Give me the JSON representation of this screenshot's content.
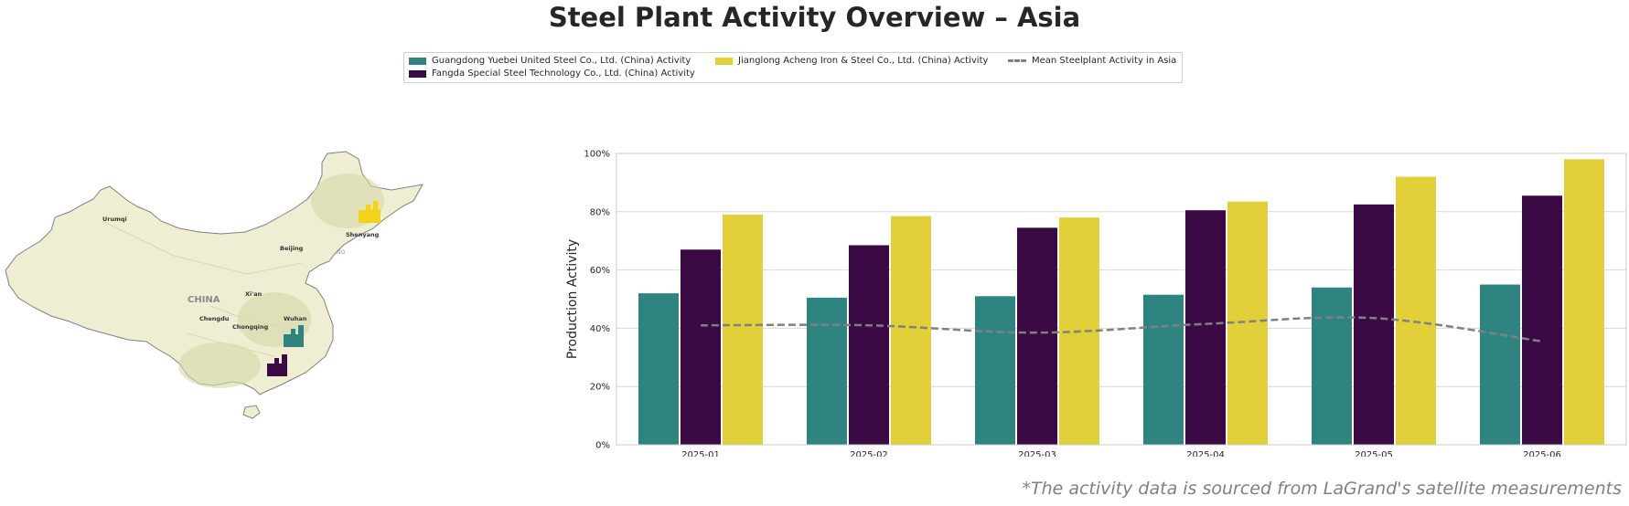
{
  "title": "Steel Plant Activity Overview – Asia",
  "footnote": "*The activity data is sourced from LaGrand's satellite measurements",
  "legend": {
    "items": [
      {
        "label": "Guangdong Yuebei United Steel Co., Ltd. (China) Activity",
        "color": "#2e8580",
        "kind": "bar"
      },
      {
        "label": "Fangda Special Steel Technology Co., Ltd. (China) Activity",
        "color": "#3b0a45",
        "kind": "bar"
      },
      {
        "label": "Jianglong Acheng Iron & Steel Co., Ltd. (China) Activity",
        "color": "#e1d03a",
        "kind": "bar"
      },
      {
        "label": "Mean Steelplant Activity in Asia",
        "color": "#808080",
        "kind": "dashed-line"
      }
    ]
  },
  "map": {
    "labels": {
      "country": "CHINA",
      "cities": [
        "Urumqi",
        "Beijing",
        "Shenyang",
        "Xi'an",
        "Wuhan",
        "Chengdu",
        "Chongqing"
      ],
      "other": "NO"
    },
    "colors": {
      "land": "#efedd2",
      "border": "#808080"
    },
    "markers": [
      {
        "plant": "Jianglong Acheng Iron & Steel Co., Ltd.",
        "color": "#f2d21b",
        "icon": "factory-icon"
      },
      {
        "plant": "Guangdong Yuebei United Steel Co., Ltd.",
        "color": "#2e8580",
        "icon": "factory-icon"
      },
      {
        "plant": "Fangda Special Steel Technology Co., Ltd.",
        "color": "#3b0a45",
        "icon": "factory-icon"
      }
    ]
  },
  "chart_data": {
    "type": "bar",
    "title": "",
    "xlabel": "",
    "ylabel": "Production Activity",
    "categories": [
      "2025-01",
      "2025-02",
      "2025-03",
      "2025-04",
      "2025-05",
      "2025-06"
    ],
    "ylim": [
      0,
      100
    ],
    "yticks": [
      "0%",
      "20%",
      "40%",
      "60%",
      "80%",
      "100%"
    ],
    "grid": "horizontal",
    "legend_position": "top-center",
    "series": [
      {
        "name": "Guangdong Yuebei United Steel Co., Ltd. (China) Activity",
        "color": "#2e8580",
        "values": [
          52,
          50.5,
          51,
          51.5,
          54,
          55
        ]
      },
      {
        "name": "Fangda Special Steel Technology Co., Ltd. (China) Activity",
        "color": "#3b0a45",
        "values": [
          67,
          68.5,
          74.5,
          80.5,
          82.5,
          85.5
        ]
      },
      {
        "name": "Jianglong Acheng Iron & Steel Co., Ltd. (China) Activity",
        "color": "#e1d03a",
        "values": [
          79,
          78.5,
          78,
          83.5,
          92,
          98
        ]
      }
    ],
    "line": {
      "name": "Mean Steelplant Activity in Asia",
      "color": "#808080",
      "style": "dashed",
      "values": [
        41,
        41,
        38.5,
        41.5,
        43.5,
        35.5
      ]
    }
  }
}
